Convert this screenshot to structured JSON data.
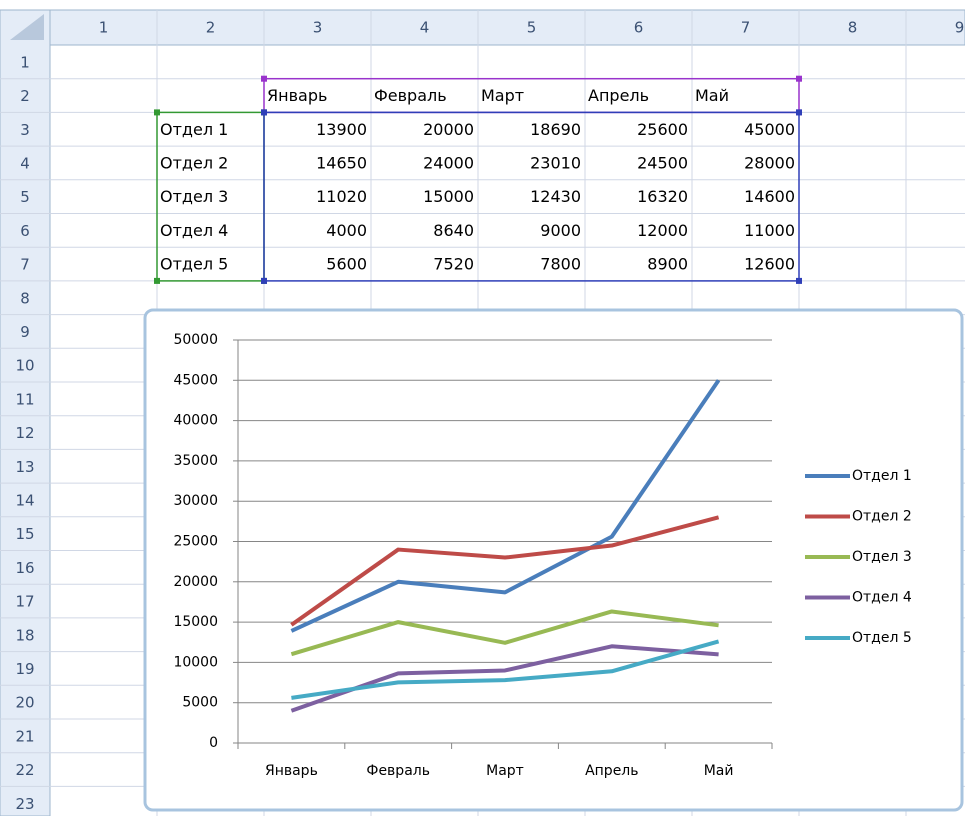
{
  "sheet": {
    "column_headers": [
      "1",
      "2",
      "3",
      "4",
      "5",
      "6",
      "7",
      "8",
      "9"
    ],
    "row_headers": [
      "1",
      "2",
      "3",
      "4",
      "5",
      "6",
      "7",
      "8",
      "9",
      "10",
      "11",
      "12",
      "13",
      "14",
      "15",
      "16",
      "17",
      "18",
      "19",
      "20",
      "21",
      "22",
      "23"
    ],
    "table": {
      "header": [
        "Январь",
        "Февраль",
        "Март",
        "Апрель",
        "Май"
      ],
      "rows": [
        {
          "label": "Отдел 1",
          "values": [
            13900,
            20000,
            18690,
            25600,
            45000
          ]
        },
        {
          "label": "Отдел 2",
          "values": [
            14650,
            24000,
            23010,
            24500,
            28000
          ]
        },
        {
          "label": "Отдел 3",
          "values": [
            11020,
            15000,
            12430,
            16320,
            14600
          ]
        },
        {
          "label": "Отдел 4",
          "values": [
            4000,
            8640,
            9000,
            12000,
            11000
          ]
        },
        {
          "label": "Отдел 5",
          "values": [
            5600,
            7520,
            7800,
            8900,
            12600
          ]
        }
      ]
    }
  },
  "chart_data": {
    "type": "line",
    "categories": [
      "Январь",
      "Февраль",
      "Март",
      "Апрель",
      "Май"
    ],
    "series": [
      {
        "name": "Отдел 1",
        "color": "#4a7ebb",
        "values": [
          13900,
          20000,
          18690,
          25600,
          45000
        ]
      },
      {
        "name": "Отдел 2",
        "color": "#be4b48",
        "values": [
          14650,
          24000,
          23010,
          24500,
          28000
        ]
      },
      {
        "name": "Отдел 3",
        "color": "#98b954",
        "values": [
          11020,
          15000,
          12430,
          16320,
          14600
        ]
      },
      {
        "name": "Отдел 4",
        "color": "#7d60a0",
        "values": [
          4000,
          8640,
          9000,
          12000,
          11000
        ]
      },
      {
        "name": "Отдел 5",
        "color": "#46aac5",
        "values": [
          5600,
          7520,
          7800,
          8900,
          12600
        ]
      }
    ],
    "ylim": [
      0,
      50000
    ],
    "yticks": [
      0,
      5000,
      10000,
      15000,
      20000,
      25000,
      30000,
      35000,
      40000,
      45000,
      50000
    ],
    "grid": true,
    "legend": "right"
  }
}
